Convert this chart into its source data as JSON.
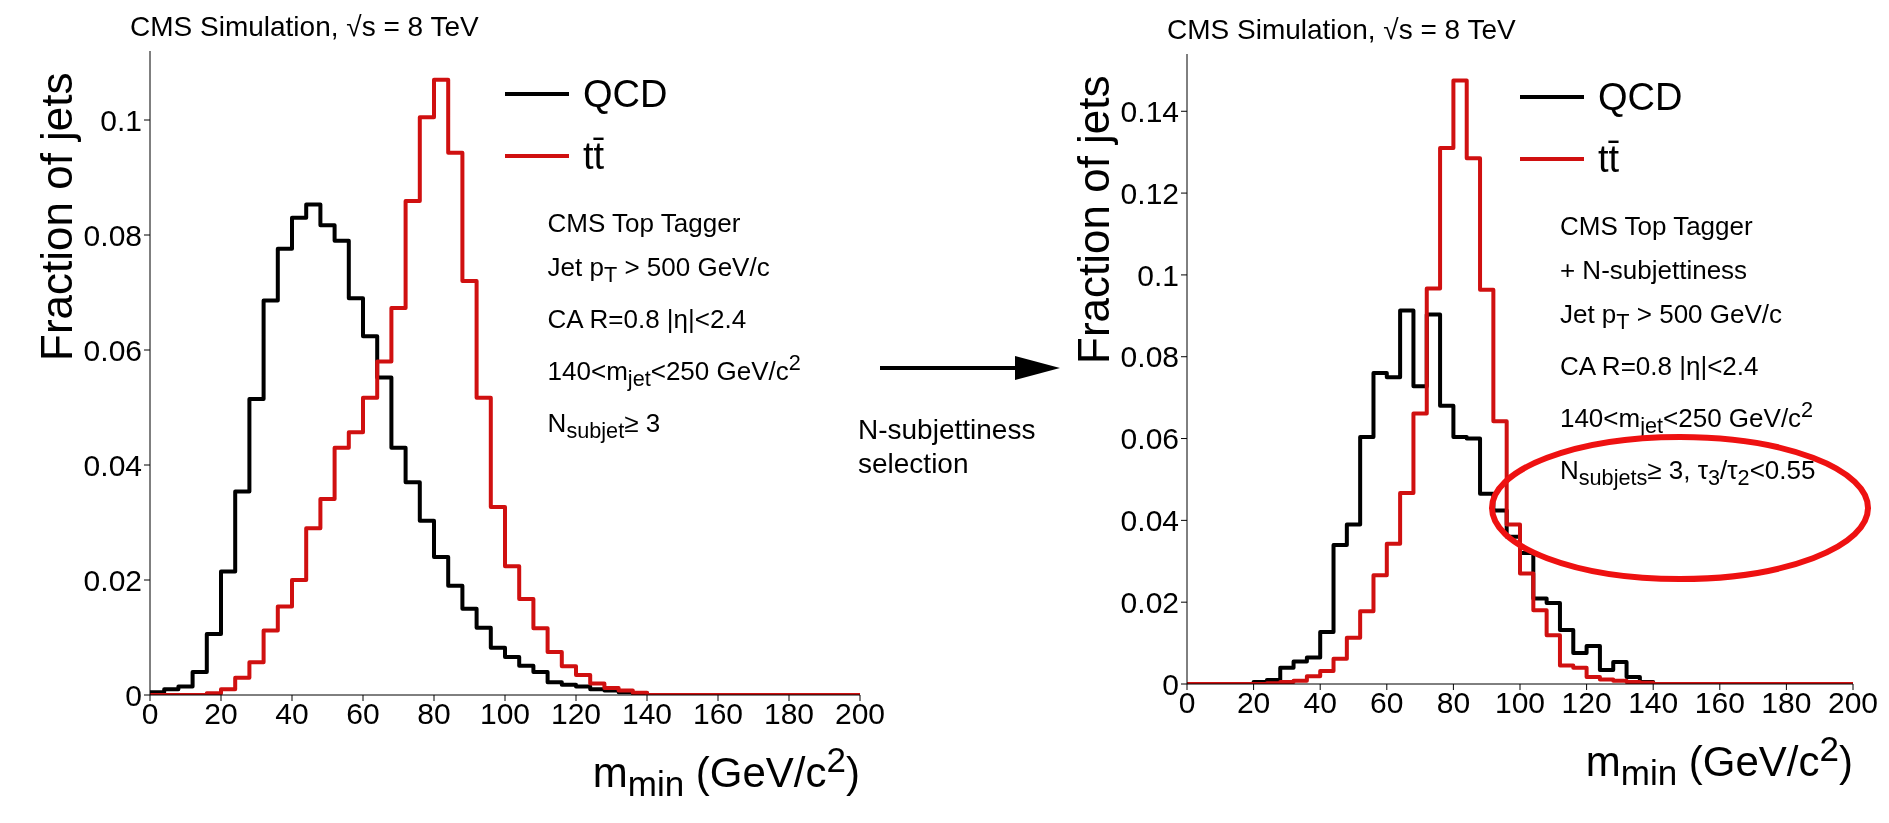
{
  "chart_data": [
    {
      "type": "histogram",
      "title": "CMS Simulation, √s = 8 TeV",
      "xlabel": "m$_{min}$ (GeV/c$^{2}$)",
      "ylabel": "Fraction of jets",
      "bins": [
        0,
        4,
        8,
        12,
        16,
        20,
        24,
        28,
        32,
        36,
        40,
        44,
        48,
        52,
        56,
        60,
        64,
        68,
        72,
        76,
        80,
        84,
        88,
        92,
        96,
        100,
        104,
        108,
        112,
        116,
        120,
        124,
        128,
        132,
        136,
        140,
        144,
        148,
        152,
        156,
        160,
        164,
        168,
        172,
        176,
        180,
        184,
        188,
        192,
        196,
        200
      ],
      "series": [
        {
          "name": "QCD",
          "color": "#000000",
          "values": [
            0.0005,
            0.001,
            0.0015,
            0.004,
            0.0106,
            0.0215,
            0.0354,
            0.0515,
            0.0686,
            0.0776,
            0.083,
            0.0853,
            0.0817,
            0.079,
            0.069,
            0.0624,
            0.0552,
            0.043,
            0.037,
            0.0303,
            0.024,
            0.019,
            0.015,
            0.0117,
            0.0082,
            0.0066,
            0.0051,
            0.004,
            0.0022,
            0.0018,
            0.0015,
            0.001,
            0.0008,
            0.0005,
            0.0003,
            0,
            0,
            0,
            0,
            0,
            0,
            0,
            0,
            0,
            0,
            0,
            0,
            0,
            0,
            0
          ]
        },
        {
          "name": "tt̄",
          "color": "#d01010",
          "values": [
            0,
            0,
            0,
            0,
            0.0003,
            0.001,
            0.003,
            0.0057,
            0.0112,
            0.0154,
            0.02,
            0.029,
            0.0341,
            0.043,
            0.0457,
            0.0517,
            0.058,
            0.0673,
            0.0859,
            0.1005,
            0.107,
            0.0943,
            0.072,
            0.0517,
            0.0327,
            0.0224,
            0.0167,
            0.0116,
            0.0075,
            0.005,
            0.0035,
            0.002,
            0.0012,
            0.0008,
            0.0004,
            0,
            0,
            0,
            0,
            0,
            0,
            0,
            0,
            0,
            0,
            0,
            0,
            0,
            0,
            0
          ]
        }
      ],
      "xlim": [
        0,
        200
      ],
      "xticks": [
        0,
        20,
        40,
        60,
        80,
        100,
        120,
        140,
        160,
        180,
        200
      ],
      "ylim": [
        0,
        0.112
      ],
      "yticks": [
        0,
        0.02,
        0.04,
        0.06,
        0.08,
        0.1
      ],
      "legend": "top right",
      "grid": false,
      "line_style": "solid",
      "annotations": [
        "CMS Top Tagger",
        "Jet p$_{T}$ > 500 GeV/c",
        "CA R=0.8 |η|<2.4",
        "140<m$_{jet}$<250 GeV/c$^{2}$",
        "N$_{subjet}$≥ 3",
        "N-subjettiness selection"
      ]
    },
    {
      "type": "histogram",
      "title": "CMS Simulation, √s = 8 TeV",
      "xlabel": "m$_{min}$ (GeV/c$^{2}$)",
      "ylabel": "Fraction of jets",
      "bins": [
        0,
        4,
        8,
        12,
        16,
        20,
        24,
        28,
        32,
        36,
        40,
        44,
        48,
        52,
        56,
        60,
        64,
        68,
        72,
        76,
        80,
        84,
        88,
        92,
        96,
        100,
        104,
        108,
        112,
        116,
        120,
        124,
        128,
        132,
        136,
        140,
        144,
        148,
        152,
        156,
        160,
        164,
        168,
        172,
        176,
        180,
        184,
        188,
        192,
        196,
        200
      ],
      "series": [
        {
          "name": "QCD",
          "color": "#000000",
          "values": [
            0,
            0,
            0,
            0,
            0,
            0.0005,
            0.001,
            0.004,
            0.0055,
            0.0065,
            0.0127,
            0.034,
            0.039,
            0.0604,
            0.076,
            0.075,
            0.0913,
            0.0728,
            0.0903,
            0.068,
            0.0604,
            0.06,
            0.0465,
            0.0424,
            0.036,
            0.032,
            0.0209,
            0.0198,
            0.0132,
            0.0076,
            0.0093,
            0.0034,
            0.0054,
            0.0017,
            0.0005,
            0,
            0,
            0,
            0,
            0,
            0,
            0,
            0,
            0,
            0,
            0,
            0,
            0,
            0,
            0
          ]
        },
        {
          "name": "tt̄",
          "color": "#d01010",
          "values": [
            0,
            0,
            0,
            0,
            0,
            0,
            0.0002,
            0.0005,
            0.0008,
            0.0019,
            0.0032,
            0.0062,
            0.0113,
            0.0178,
            0.0266,
            0.0343,
            0.0467,
            0.0661,
            0.0967,
            0.131,
            0.1475,
            0.1285,
            0.0964,
            0.0642,
            0.039,
            0.027,
            0.018,
            0.0119,
            0.0045,
            0.004,
            0.0017,
            0.0011,
            0.0008,
            0.0005,
            0.0003,
            0,
            0,
            0,
            0,
            0,
            0,
            0,
            0,
            0,
            0,
            0,
            0,
            0,
            0,
            0
          ]
        }
      ],
      "xlim": [
        0,
        200
      ],
      "xticks": [
        0,
        20,
        40,
        60,
        80,
        100,
        120,
        140,
        160,
        180,
        200
      ],
      "ylim": [
        0,
        0.154
      ],
      "yticks": [
        0,
        0.02,
        0.04,
        0.06,
        0.08,
        0.1,
        0.12,
        0.14
      ],
      "legend": "top right",
      "grid": false,
      "line_style": "solid",
      "annotations": [
        "CMS Top Tagger",
        "+ N-subjettiness",
        "Jet p$_{T}$ > 500 GeV/c",
        "CA R=0.8 |η|<2.4",
        "140<m$_{jet}$<250 GeV/c$^{2}$",
        "N$_{subjets}$≥ 3,  τ$_{3}$/τ$_{2}$<0.55"
      ]
    }
  ]
}
